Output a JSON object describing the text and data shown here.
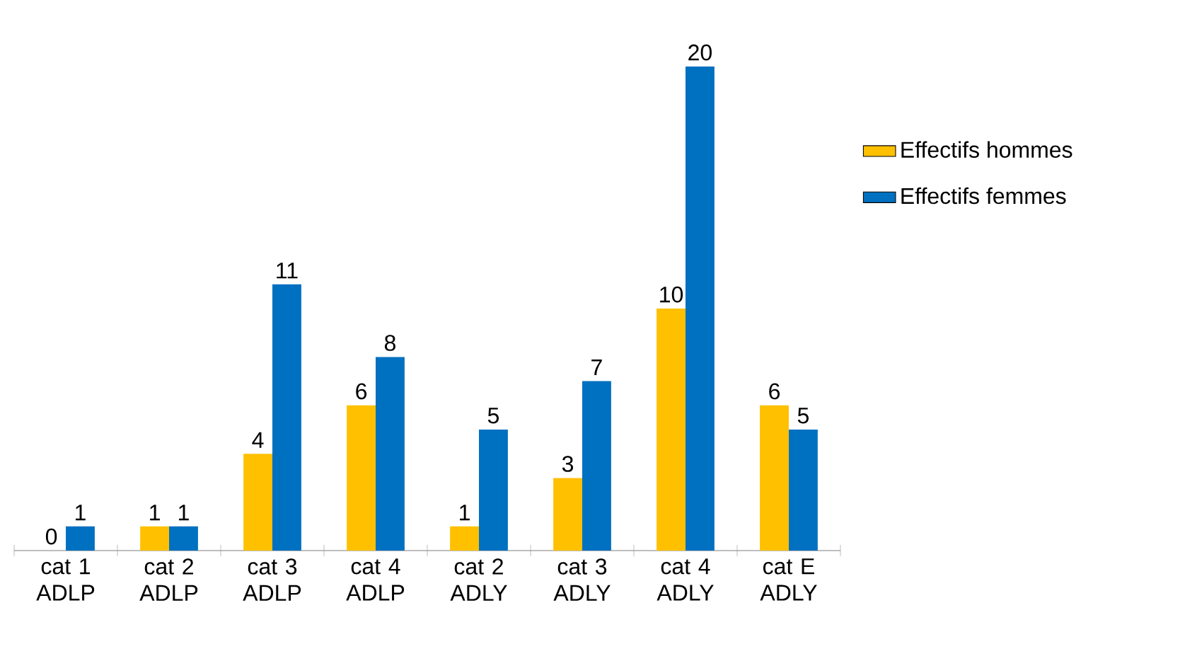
{
  "chart_data": {
    "type": "bar",
    "categories": [
      "cat 1 ADLP",
      "cat 2 ADLP",
      "cat 3 ADLP",
      "cat 4 ADLP",
      "cat 2 ADLY",
      "cat 3 ADLY",
      "cat 4 ADLY",
      "cat E ADLY"
    ],
    "series": [
      {
        "name": "Effectifs hommes",
        "color": "#ffc000",
        "values": [
          0,
          1,
          4,
          6,
          1,
          3,
          10,
          6
        ]
      },
      {
        "name": "Effectifs femmes",
        "color": "#0070c0",
        "values": [
          1,
          1,
          11,
          8,
          5,
          7,
          20,
          5
        ]
      }
    ],
    "data_labels": true,
    "legend": "right"
  }
}
